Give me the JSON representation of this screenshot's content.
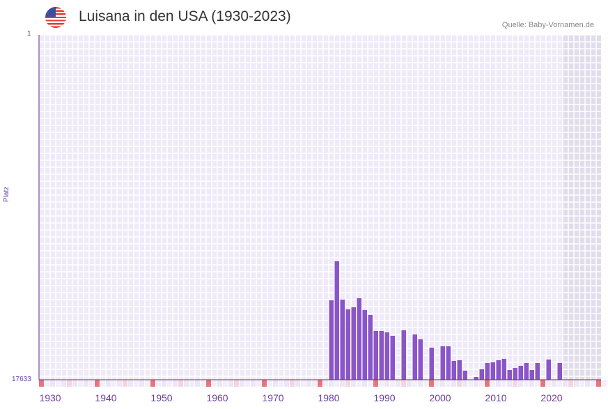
{
  "header": {
    "title": "Luisana in den USA (1930-2023)",
    "source": "Quelle: Baby-Vornamen.de",
    "flag_icon": "us-flag-icon"
  },
  "colors": {
    "bar": "#8a55c8",
    "grid_bg": "#efeaf8",
    "future_bg": "#e2ddec",
    "marker_red": "#e8747c",
    "marker_pink": "#f5d5de",
    "axis": "#5a2d8a"
  },
  "chart_data": {
    "type": "bar",
    "title": "Luisana in den USA (1930-2023)",
    "ylabel": "Platz",
    "ylim": [
      17633,
      1
    ],
    "y_ticks": [
      "1",
      "17633"
    ],
    "x_ticks": [
      "1930",
      "1940",
      "1950",
      "1960",
      "1970",
      "1980",
      "1990",
      "2000",
      "2010",
      "2020"
    ],
    "xlim": [
      1928,
      2029
    ],
    "future_from": 2022,
    "x": [
      1980,
      1981,
      1982,
      1983,
      1984,
      1985,
      1986,
      1987,
      1988,
      1989,
      1990,
      1991,
      1993,
      1995,
      1996,
      1998,
      2000,
      2001,
      2002,
      2003,
      2004,
      2006,
      2007,
      2008,
      2009,
      2010,
      2011,
      2012,
      2013,
      2014,
      2015,
      2016,
      2017,
      2019,
      2021
    ],
    "values": [
      13572,
      11577,
      13536,
      14035,
      13928,
      13465,
      14070,
      14320,
      15139,
      15139,
      15210,
      15388,
      15104,
      15317,
      15566,
      15994,
      15923,
      15923,
      16671,
      16635,
      17169,
      17490,
      17098,
      16778,
      16742,
      16635,
      16564,
      17134,
      17027,
      16920,
      16778,
      17134,
      16778,
      16600,
      16778
    ]
  }
}
